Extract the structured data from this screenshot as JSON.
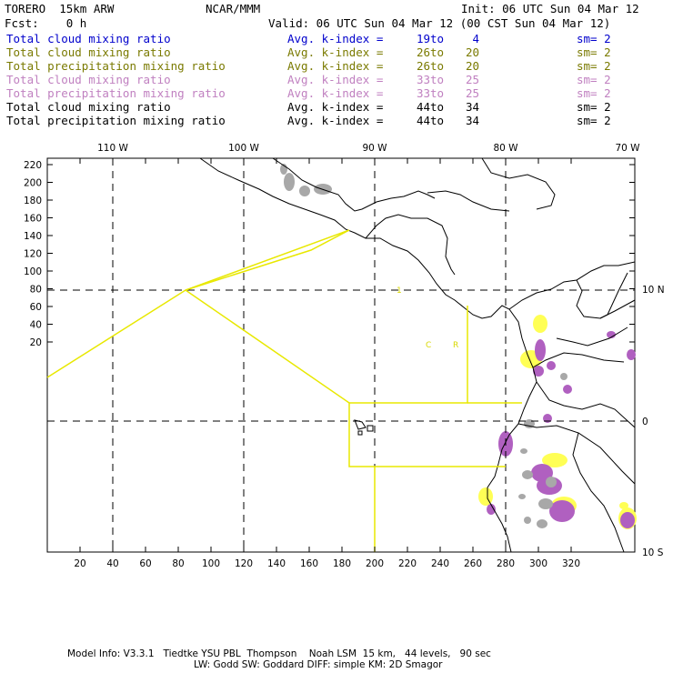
{
  "header": {
    "model": "TORERO  15km ARW",
    "org": "NCAR/MMM",
    "init": "Init: 06 UTC Sun 04 Mar 12",
    "fcst": "Fcst:    0 h",
    "valid": "Valid: 06 UTC Sun 04 Mar 12 (00 CST Sun 04 Mar 12)"
  },
  "legend": [
    {
      "label": "Total cloud mixing ratio",
      "avg": "Avg. k-index =",
      "from": "19",
      "to": "to",
      "end": "4",
      "sm": "sm= 2",
      "color": "#0000cc"
    },
    {
      "label": "Total cloud mixing ratio",
      "avg": "Avg. k-index =",
      "from": "26",
      "to": "to",
      "end": "20",
      "sm": "sm= 2",
      "color": "#7a7a00"
    },
    {
      "label": "Total precipitation mixing ratio",
      "avg": "Avg. k-index =",
      "from": "26",
      "to": "to",
      "end": "20",
      "sm": "sm= 2",
      "color": "#7a7a00"
    },
    {
      "label": "Total cloud mixing ratio",
      "avg": "Avg. k-index =",
      "from": "33",
      "to": "to",
      "end": "25",
      "sm": "sm= 2",
      "color": "#c080c0"
    },
    {
      "label": "Total precipitation mixing ratio",
      "avg": "Avg. k-index =",
      "from": "33",
      "to": "to",
      "end": "25",
      "sm": "sm= 2",
      "color": "#c080c0"
    },
    {
      "label": "Total cloud mixing ratio",
      "avg": "Avg. k-index =",
      "from": "44",
      "to": "to",
      "end": "34",
      "sm": "sm= 2",
      "color": "#000000"
    },
    {
      "label": "Total precipitation mixing ratio",
      "avg": "Avg. k-index =",
      "from": "44",
      "to": "to",
      "end": "34",
      "sm": "sm= 2",
      "color": "#000000"
    }
  ],
  "map": {
    "lon_labels": [
      "110 W",
      "100 W",
      "90 W",
      "80 W",
      "70 W"
    ],
    "lat_labels": [
      "10 N",
      "0",
      "10 S"
    ],
    "y_ticks": [
      "220",
      "200",
      "180",
      "160",
      "140",
      "120",
      "100",
      "80",
      "60",
      "40",
      "20"
    ],
    "x_ticks": [
      "20",
      "40",
      "60",
      "80",
      "100",
      "120",
      "140",
      "160",
      "180",
      "200",
      "220",
      "240",
      "260",
      "280",
      "300",
      "320"
    ],
    "annotations": [
      "1",
      "C",
      "R"
    ],
    "colors": {
      "gray": "#a8a8a8",
      "yellow": "#ffff55",
      "purple": "#b060c0",
      "line": "#e8e800"
    }
  },
  "footer": {
    "line1": "Model Info: V3.3.1   Tiedtke YSU PBL  Thompson    Noah LSM  15 km,   44 levels,   90 sec",
    "line2": "LW: Godd SW: Goddard DIFF: simple KM: 2D Smagor"
  }
}
